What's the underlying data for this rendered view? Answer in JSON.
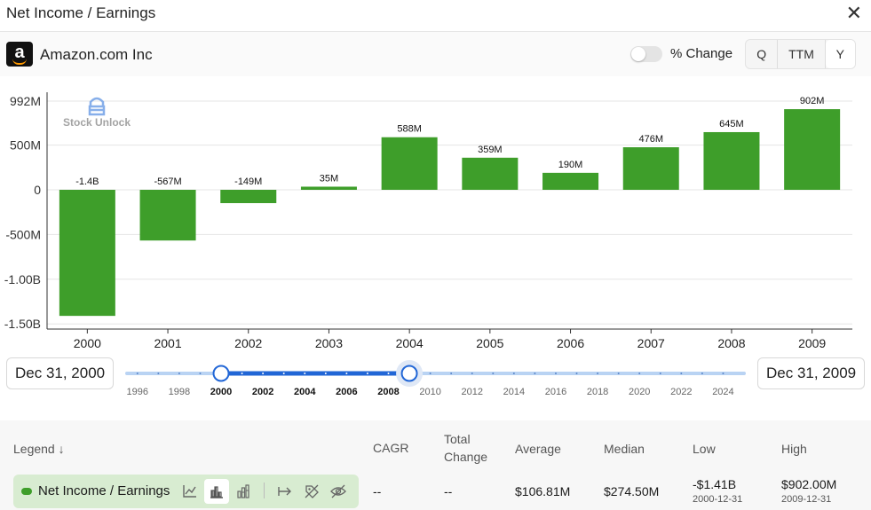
{
  "header": {
    "title": "Net Income / Earnings",
    "close_icon": "close-icon"
  },
  "company": {
    "name": "Amazon.com Inc",
    "logo_letter": "a"
  },
  "toggle": {
    "label": "% Change",
    "on": false
  },
  "period": {
    "options": [
      "Q",
      "TTM",
      "Y"
    ],
    "selected": "Y"
  },
  "watermark": "Stock Unlock",
  "colors": {
    "bar": "#3e9e2a",
    "accent": "#2166d6",
    "track": "#b9d3f3"
  },
  "chart_data": {
    "type": "bar",
    "categories": [
      "2000",
      "2001",
      "2002",
      "2003",
      "2004",
      "2005",
      "2006",
      "2007",
      "2008",
      "2009"
    ],
    "values": [
      -1410,
      -567,
      -149,
      35,
      588,
      359,
      190,
      476,
      645,
      902
    ],
    "data_labels": [
      "-1.4B",
      "-567M",
      "-149M",
      "35M",
      "588M",
      "359M",
      "190M",
      "476M",
      "645M",
      "902M"
    ],
    "y_ticks": [
      {
        "value": 992,
        "label": "992M"
      },
      {
        "value": 500,
        "label": "500M"
      },
      {
        "value": 0,
        "label": "0"
      },
      {
        "value": -500,
        "label": "-500M"
      },
      {
        "value": -1000,
        "label": "-1.00B"
      },
      {
        "value": -1500,
        "label": "-1.50B"
      }
    ],
    "ylim": [
      -1500,
      992
    ],
    "units": "millions USD",
    "grid": true
  },
  "range": {
    "start_label": "Dec 31, 2000",
    "end_label": "Dec 31, 2009",
    "ticks": [
      "1996",
      "1998",
      "2000",
      "2002",
      "2004",
      "2006",
      "2008",
      "2010",
      "2012",
      "2014",
      "2016",
      "2018",
      "2020",
      "2022",
      "2024"
    ],
    "min_year": 1995.5,
    "max_year": 2025,
    "start_year": 2000,
    "end_year": 2009
  },
  "legend": {
    "headers": {
      "legend": "Legend",
      "cagr": "CAGR",
      "total_change_1": "Total",
      "total_change_2": "Change",
      "average": "Average",
      "median": "Median",
      "low": "Low",
      "high": "High"
    },
    "sort_icon": "arrow-down-icon",
    "series": {
      "name": "Net Income / Earnings",
      "cagr": "--",
      "total_change": "--",
      "average": "$106.81M",
      "median": "$274.50M",
      "low": "-$1.41B",
      "low_date": "2000-12-31",
      "high": "$902.00M",
      "high_date": "2009-12-31"
    },
    "icons": [
      "line-chart-icon",
      "bar-chart-icon",
      "stacked-bar-icon",
      "arrow-right-bar-icon",
      "tag-off-icon",
      "eye-off-icon"
    ]
  }
}
